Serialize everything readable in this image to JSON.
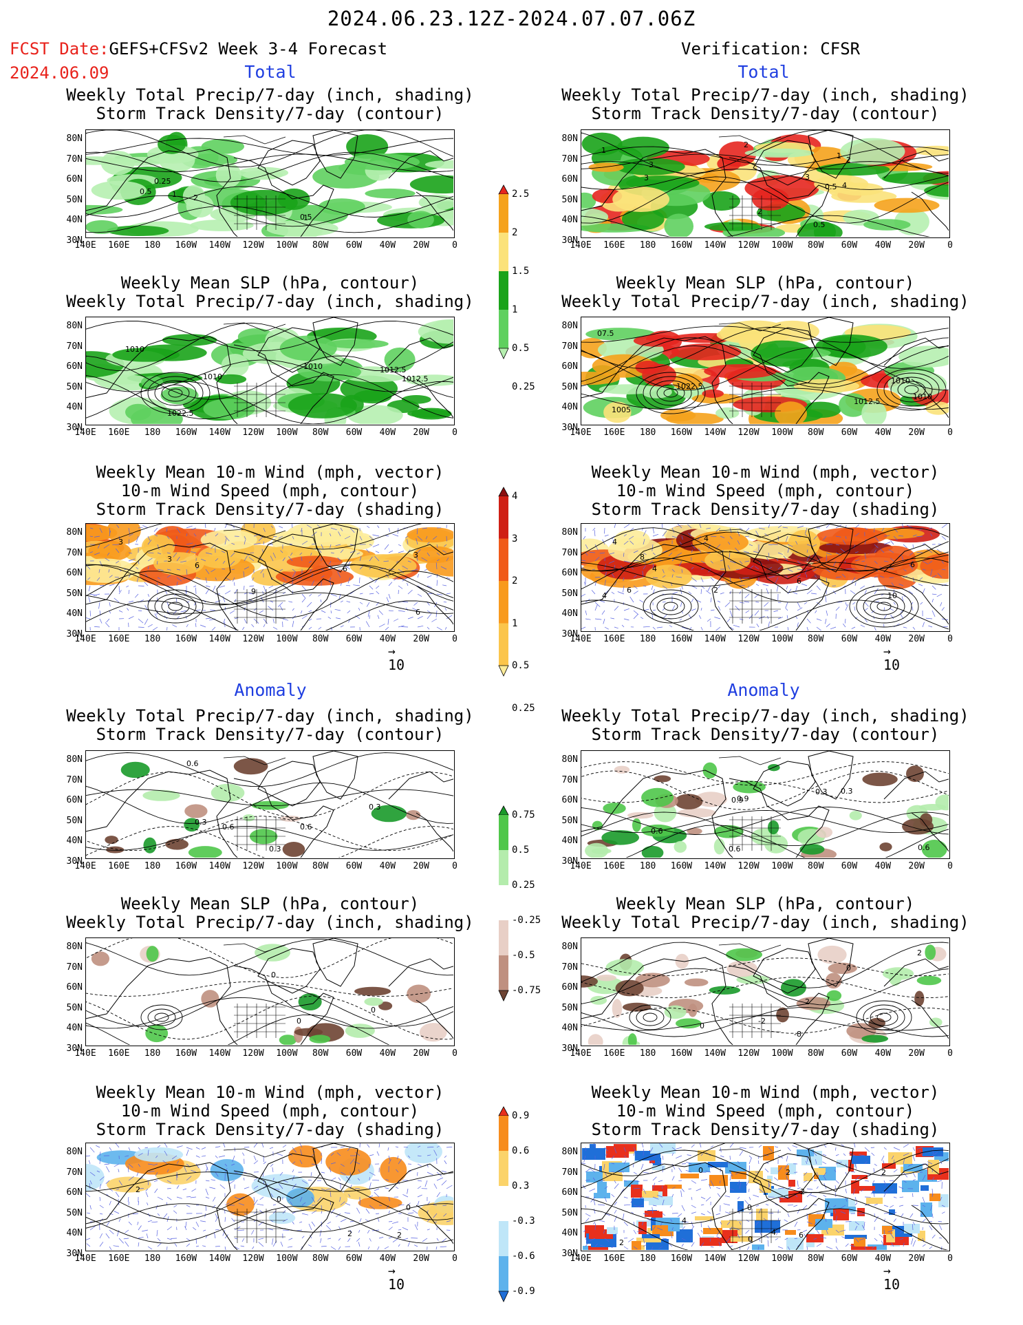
{
  "header": {
    "title": "2024.06.23.12Z-2024.07.07.06Z",
    "fcst_label": "FCST Date:",
    "fcst_model": "GEFS+CFSv2 Week 3-4 Forecast",
    "fcst_date": "2024.06.09",
    "verification": "Verification: CFSR"
  },
  "sections": {
    "total": "Total",
    "anomaly": "Anomaly"
  },
  "titles": {
    "precip_storm": [
      "Weekly Total Precip/7-day (inch, shading)",
      "Storm Track Density/7-day (contour)"
    ],
    "slp_precip": [
      "Weekly Mean SLP (hPa, contour)",
      "Weekly Total Precip/7-day (inch, shading)"
    ],
    "wind": [
      "Weekly Mean 10-m Wind (mph, vector)",
      "10-m Wind Speed (mph, contour)",
      "Storm Track Density/7-day (shading)"
    ]
  },
  "axes": {
    "lat_labels": [
      "80N",
      "70N",
      "60N",
      "50N",
      "40N",
      "30N"
    ],
    "lon_labels": [
      "140E",
      "160E",
      "180",
      "160W",
      "140W",
      "120W",
      "100W",
      "80W",
      "60W",
      "40W",
      "20W",
      "0"
    ]
  },
  "vector_ref": "10",
  "colorbars": {
    "precip_total": {
      "labels": [
        "2.5",
        "2",
        "1.5",
        "1",
        "0.5",
        "0.25"
      ],
      "colors": [
        "#e6261f",
        "#f5a21c",
        "#fbe27a",
        "#1aa31a",
        "#5fd05f",
        "#b6efb0"
      ]
    },
    "storm_total": {
      "labels": [
        "4",
        "3",
        "2",
        "1",
        "0.5",
        "0.25"
      ],
      "colors": [
        "#8b0f10",
        "#cf1f15",
        "#f05a19",
        "#f89a1d",
        "#fbc54b",
        "#fdec9a"
      ]
    },
    "precip_anom": {
      "labels": [
        "0.75",
        "0.5",
        "0.25",
        "-0.25",
        "-0.5",
        "-0.75"
      ],
      "colors": [
        "#1a9a2a",
        "#4fc74a",
        "#b4ecac",
        "#ffffff",
        "#e8cfc6",
        "#bf9080",
        "#6e4433"
      ]
    },
    "storm_anom": {
      "labels": [
        "0.9",
        "0.6",
        "0.3",
        "-0.3",
        "-0.6",
        "-0.9"
      ],
      "colors": [
        "#e8301c",
        "#f78c1c",
        "#fbd36a",
        "#ffffff",
        "#bfe6f8",
        "#5db2ec",
        "#1f6fd8"
      ]
    }
  },
  "panel_labels": {
    "p1": [
      "1",
      "2",
      "0.5",
      "0.5",
      "0.25",
      "1"
    ],
    "p2": [
      "1",
      "2",
      "2",
      "3",
      "4",
      "3",
      "2",
      "0.5",
      "0.5",
      "1",
      "3"
    ],
    "p3": [
      "1012.5",
      "1010",
      "1012.5",
      "1022.5",
      "1010",
      "1010"
    ],
    "p4": [
      "1010",
      "1012.5",
      "1005",
      "1022.5",
      "1010",
      "07.5"
    ],
    "p5": [
      "3",
      "3",
      "3",
      "6",
      "9",
      "6",
      "6"
    ],
    "p6": [
      "4",
      "6",
      "2",
      "4",
      "4",
      "10",
      "8",
      "4",
      "6",
      "6"
    ],
    "p7": [
      "0.3",
      "0.6",
      "0.3",
      "0.6",
      "0.6",
      "0.3"
    ],
    "p8": [
      "0.6",
      "0.9",
      "0.3",
      "0.9",
      "0.6",
      "0.3",
      "0.6"
    ],
    "p9": [
      "0",
      "0",
      "0"
    ],
    "p10": [
      "2",
      "0",
      "2",
      "-2",
      "0",
      "-8"
    ],
    "p11": [
      "2",
      "0",
      "2",
      "0",
      "2"
    ],
    "p12": [
      "2",
      "2",
      "4",
      "2",
      "0",
      "0",
      "2",
      "6",
      "4",
      "0"
    ]
  }
}
